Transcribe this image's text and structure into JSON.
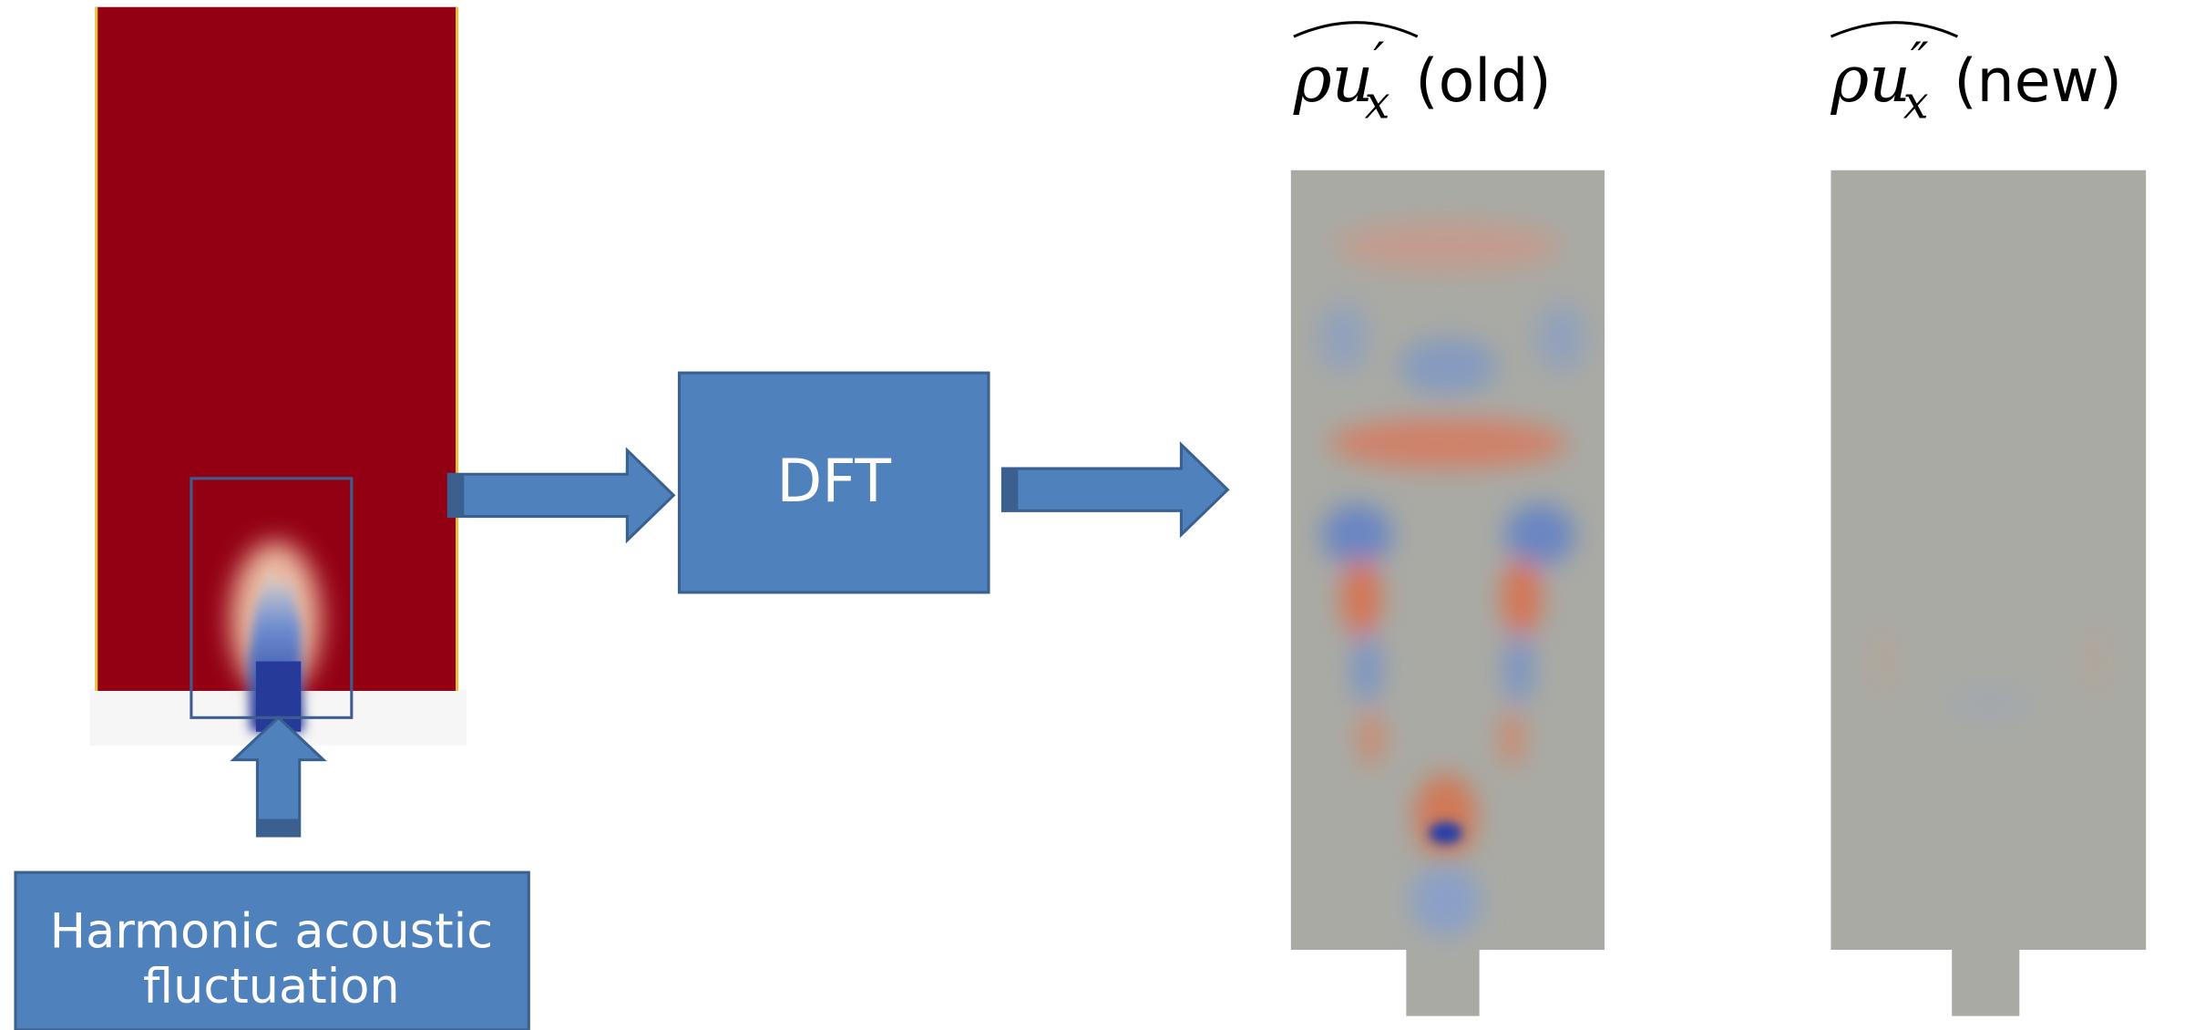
{
  "source": {
    "label_lines": [
      "Harmonic acoustic",
      "fluctuation"
    ]
  },
  "process": {
    "label": "DFT"
  },
  "results": [
    {
      "symbol": "ρu",
      "prime": "′",
      "subscript": "x",
      "tag": "(old)"
    },
    {
      "symbol": "ρu",
      "prime": "″",
      "subscript": "x",
      "tag": "(new)"
    }
  ]
}
